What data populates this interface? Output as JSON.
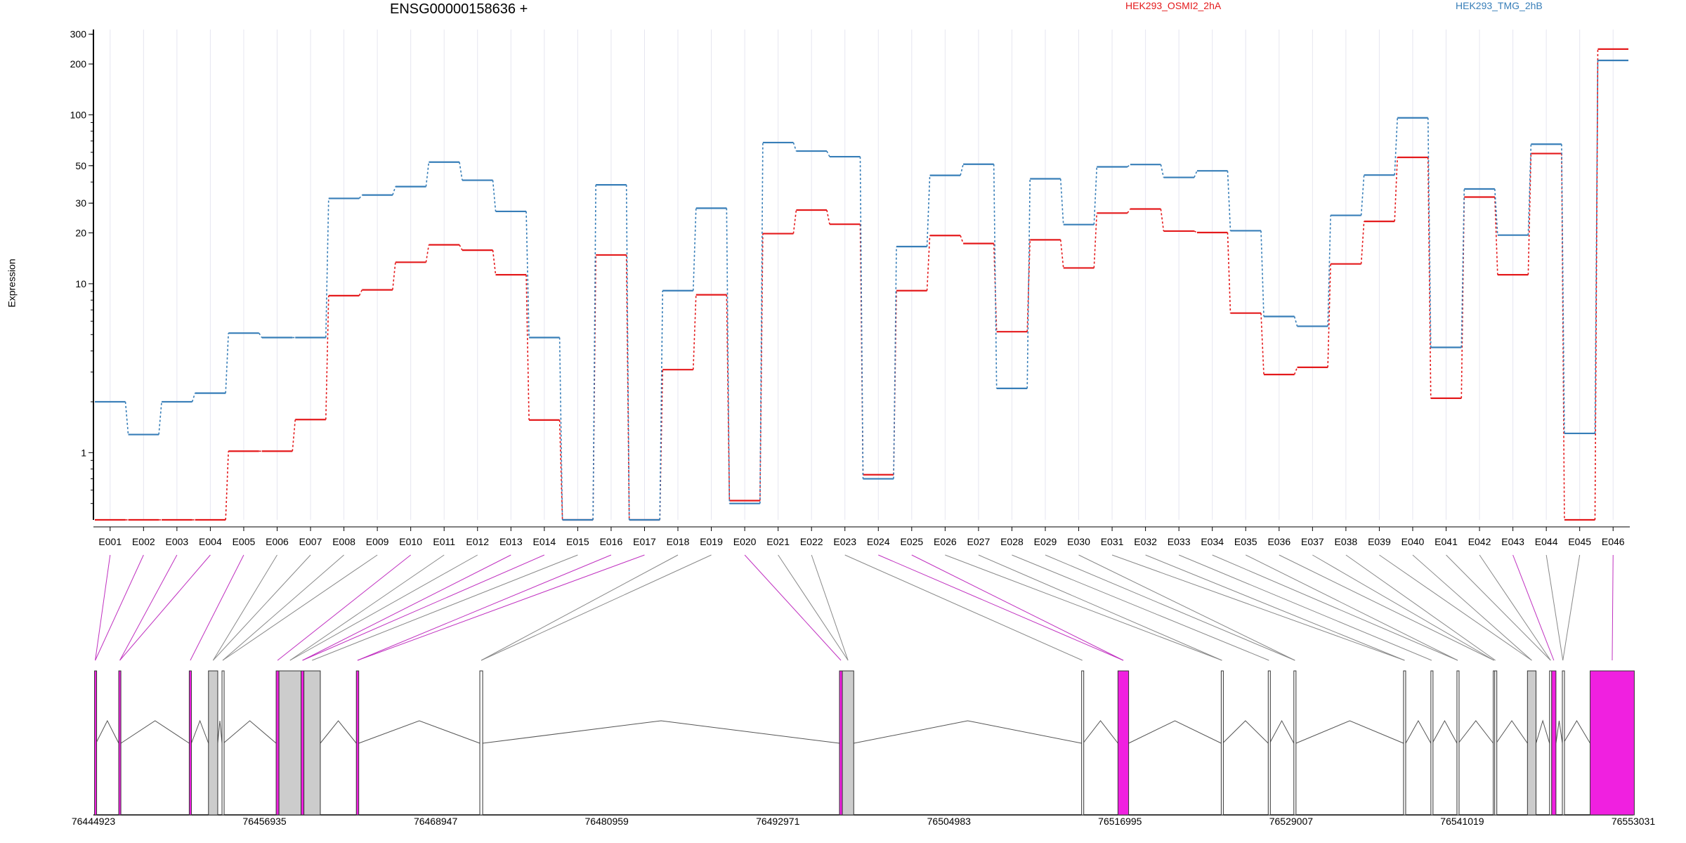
{
  "chart_data": {
    "type": "line",
    "title": "ENSG00000158636 +",
    "ylabel": "Expression",
    "xlabel": "",
    "y_scale": "log",
    "ylim": [
      0.4,
      320
    ],
    "y_ticks": [
      1,
      10,
      20,
      30,
      50,
      100,
      200,
      300
    ],
    "grid": "vertical",
    "legend_position": "top",
    "categories": [
      "E001",
      "E002",
      "E003",
      "E004",
      "E005",
      "E006",
      "E007",
      "E008",
      "E009",
      "E010",
      "E011",
      "E012",
      "E013",
      "E014",
      "E015",
      "E016",
      "E017",
      "E018",
      "E019",
      "E020",
      "E021",
      "E022",
      "E023",
      "E024",
      "E025",
      "E026",
      "E027",
      "E028",
      "E029",
      "E030",
      "E031",
      "E032",
      "E033",
      "E034",
      "E035",
      "E036",
      "E037",
      "E038",
      "E039",
      "E040",
      "E041",
      "E042",
      "E043",
      "E044",
      "E045",
      "E046"
    ],
    "series": [
      {
        "name": "HEK293_OSMI2_2hA",
        "color": "#e41a1c",
        "values": [
          0.4,
          0.4,
          0.4,
          0.4,
          1.02,
          1.02,
          1.57,
          8.5,
          9.2,
          13.4,
          17,
          15.8,
          11.3,
          1.56,
          0.4,
          14.8,
          0.4,
          3.1,
          8.6,
          0.52,
          19.8,
          27.3,
          22.5,
          0.74,
          9.1,
          19.3,
          17.3,
          5.2,
          18.2,
          12.4,
          26.2,
          27.7,
          20.5,
          20.1,
          6.7,
          2.9,
          3.2,
          13.1,
          23.4,
          56,
          2.1,
          32.6,
          11.3,
          59,
          0.4,
          245
        ]
      },
      {
        "name": "HEK293_TMG_2hB",
        "color": "#377eb8",
        "values": [
          2.0,
          1.28,
          2.0,
          2.25,
          5.1,
          4.8,
          4.8,
          32,
          33.5,
          37.6,
          52.5,
          41,
          26.8,
          4.8,
          0.4,
          38.5,
          0.4,
          9.1,
          28,
          0.5,
          68.5,
          61,
          56.5,
          0.7,
          16.6,
          43.8,
          51,
          2.4,
          41.8,
          22.4,
          49.2,
          50.8,
          42.6,
          46.6,
          20.6,
          6.4,
          5.6,
          25.4,
          44,
          96,
          4.2,
          36.4,
          19.4,
          67,
          1.3,
          210
        ]
      }
    ],
    "coordinates": [
      "76444923",
      "76456935",
      "76468947",
      "76480959",
      "76492971",
      "76504983",
      "76516995",
      "76529007",
      "76541019",
      "76553031"
    ],
    "exons": [
      {
        "start": 76445000,
        "end": 76445100,
        "sig": true
      },
      {
        "start": 76446700,
        "end": 76446850,
        "sig": true
      },
      {
        "start": 76451650,
        "end": 76451800,
        "sig": true
      },
      {
        "start": 76453000,
        "end": 76453650,
        "sig": false
      },
      {
        "start": 76453950,
        "end": 76454050,
        "sig": false
      },
      {
        "start": 76457750,
        "end": 76457950,
        "sig": true
      },
      {
        "start": 76457950,
        "end": 76459500,
        "sig": false
      },
      {
        "start": 76459500,
        "end": 76459700,
        "sig": true
      },
      {
        "start": 76459700,
        "end": 76460850,
        "sig": false
      },
      {
        "start": 76463380,
        "end": 76463550,
        "sig": true
      },
      {
        "start": 76472050,
        "end": 76472250,
        "sig": false
      },
      {
        "start": 76497300,
        "end": 76497500,
        "sig": true
      },
      {
        "start": 76497500,
        "end": 76498300,
        "sig": false
      },
      {
        "start": 76514300,
        "end": 76514400,
        "sig": false
      },
      {
        "start": 76516850,
        "end": 76517600,
        "sig": true
      },
      {
        "start": 76524100,
        "end": 76524200,
        "sig": false
      },
      {
        "start": 76527400,
        "end": 76527500,
        "sig": false
      },
      {
        "start": 76529200,
        "end": 76529350,
        "sig": false
      },
      {
        "start": 76536900,
        "end": 76537050,
        "sig": false
      },
      {
        "start": 76538820,
        "end": 76538920,
        "sig": false
      },
      {
        "start": 76540650,
        "end": 76540750,
        "sig": false
      },
      {
        "start": 76543200,
        "end": 76543300,
        "sig": false
      },
      {
        "start": 76543300,
        "end": 76543400,
        "sig": false
      },
      {
        "start": 76545600,
        "end": 76546200,
        "sig": false
      },
      {
        "start": 76547150,
        "end": 76547300,
        "sig": false
      },
      {
        "start": 76547300,
        "end": 76547600,
        "sig": true
      },
      {
        "start": 76548050,
        "end": 76548120,
        "sig": false
      },
      {
        "start": 76550000,
        "end": 76553100,
        "sig": true
      }
    ]
  }
}
